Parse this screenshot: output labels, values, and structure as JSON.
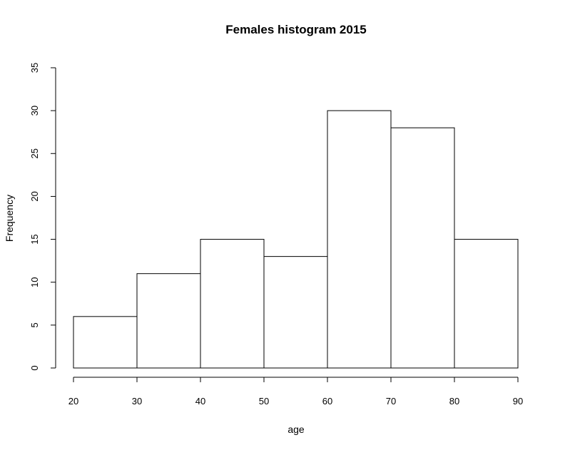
{
  "chart_data": {
    "type": "bar",
    "title": "Females histogram 2015",
    "xlabel": "age",
    "ylabel": "Frequency",
    "bins": [
      {
        "from": 20,
        "to": 30,
        "value": 6
      },
      {
        "from": 30,
        "to": 40,
        "value": 11
      },
      {
        "from": 40,
        "to": 50,
        "value": 15
      },
      {
        "from": 50,
        "to": 60,
        "value": 13
      },
      {
        "from": 60,
        "to": 70,
        "value": 30
      },
      {
        "from": 70,
        "to": 80,
        "value": 28
      },
      {
        "from": 80,
        "to": 90,
        "value": 15
      }
    ],
    "xlim": [
      20,
      90
    ],
    "ylim": [
      0,
      35
    ],
    "xticks": [
      20,
      30,
      40,
      50,
      60,
      70,
      80,
      90
    ],
    "yticks": [
      0,
      5,
      10,
      15,
      20,
      25,
      30,
      35
    ],
    "grid": false,
    "bar_fill": "#ffffff",
    "bar_stroke": "#000000"
  }
}
